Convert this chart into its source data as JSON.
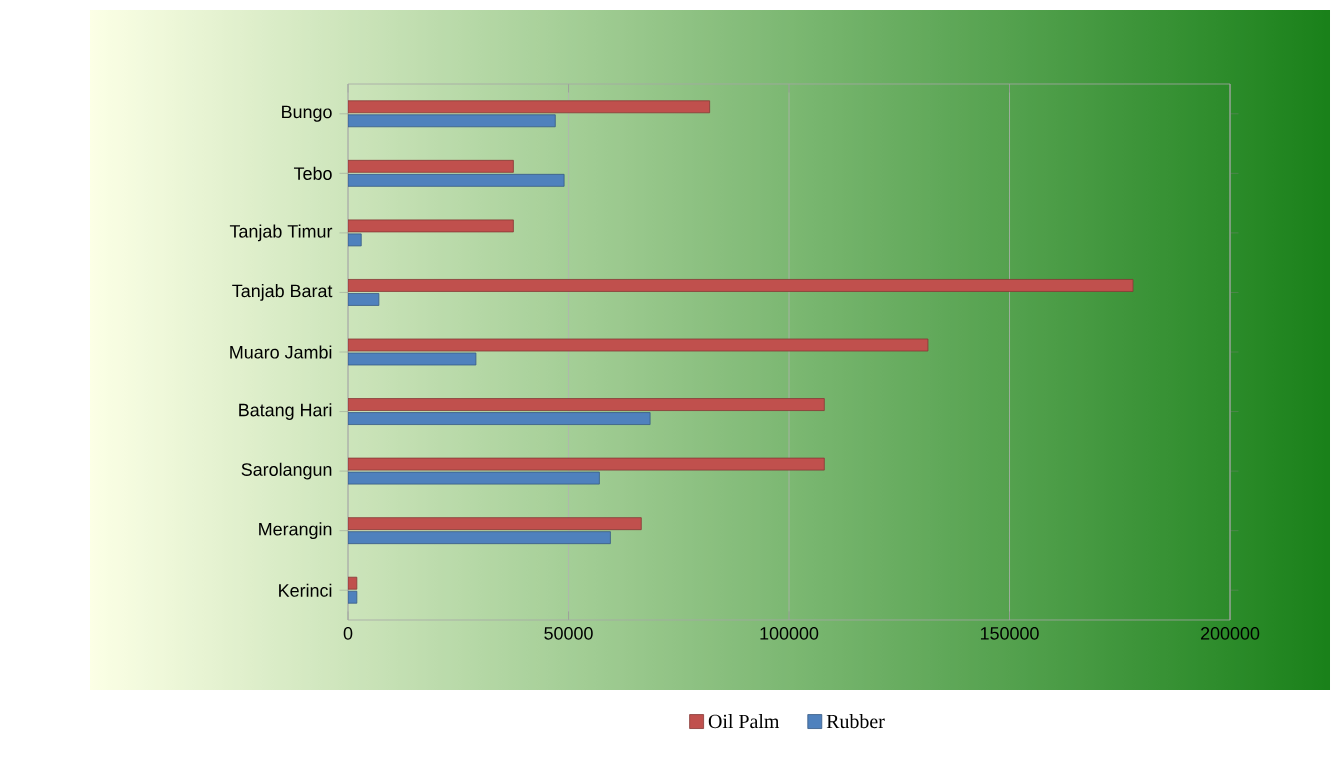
{
  "chart_data": {
    "type": "bar",
    "orientation": "horizontal",
    "categories": [
      "Bungo",
      "Tebo",
      "Tanjab Timur",
      "Tanjab Barat",
      "Muaro Jambi",
      "Batang Hari",
      "Sarolangun",
      "Merangin",
      "Kerinci"
    ],
    "series": [
      {
        "name": "Oil Palm",
        "color": "#c0504d",
        "values": [
          82000,
          37500,
          37500,
          178000,
          131500,
          108000,
          108000,
          66500,
          2000
        ]
      },
      {
        "name": "Rubber",
        "color": "#4f81bd",
        "values": [
          47000,
          49000,
          3000,
          7000,
          29000,
          68500,
          57000,
          59500,
          2000
        ]
      }
    ],
    "xlim": [
      0,
      200000
    ],
    "xticks": [
      0,
      50000,
      100000,
      150000,
      200000
    ],
    "grid": "x",
    "legend": "bottom"
  }
}
